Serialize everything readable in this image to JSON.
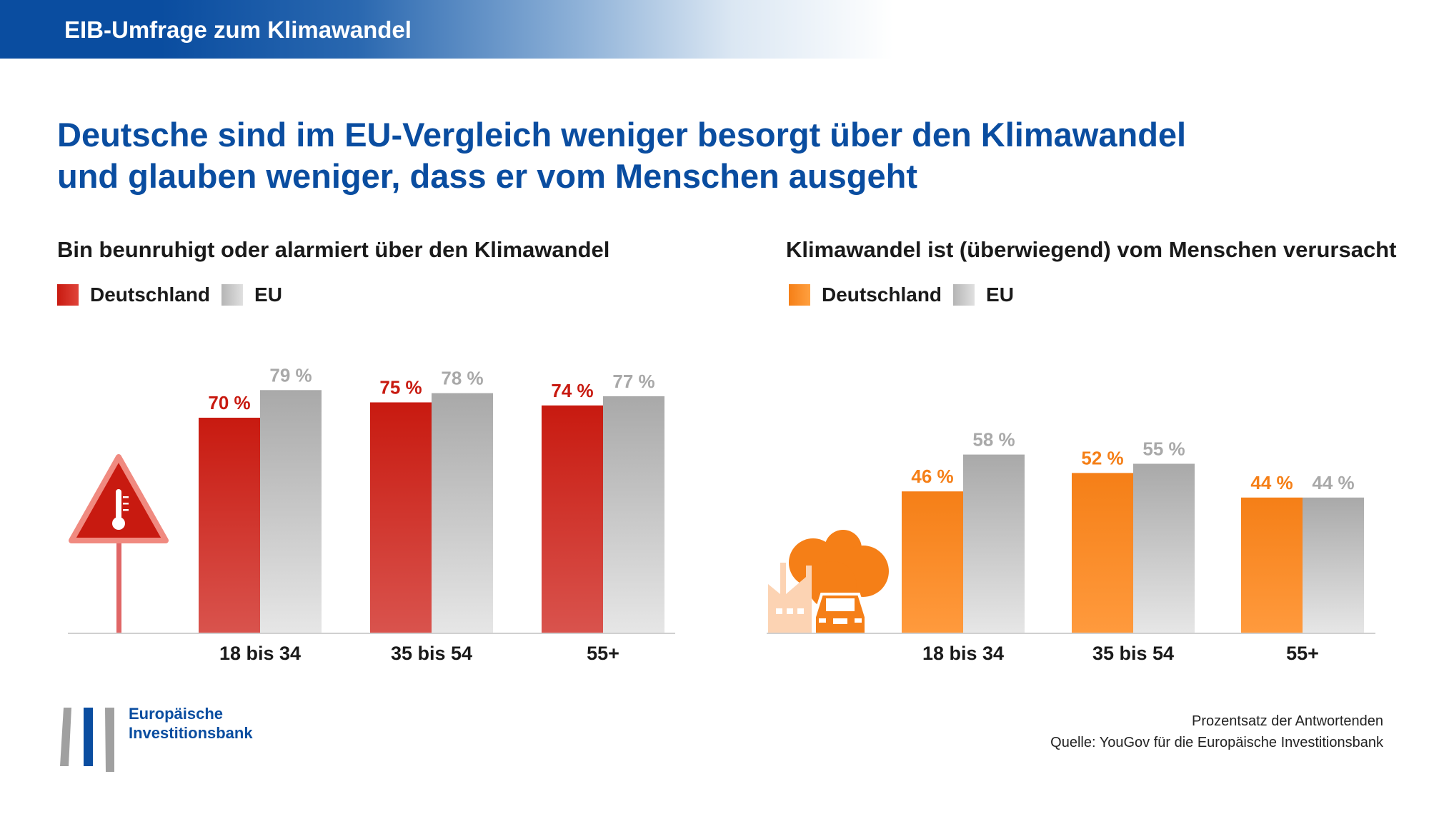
{
  "banner": {
    "title": "EIB-Umfrage zum Klimawandel"
  },
  "headline": {
    "line1": "Deutsche sind im EU-Vergleich weniger besorgt über den Klimawandel",
    "line2": "und glauben weniger, dass er vom Menschen ausgeht"
  },
  "colors": {
    "brand_blue": "#0a4da0",
    "de_left": "#c81a10",
    "de_right": "#f57f17",
    "eu": "#bdbdbd",
    "eu_label": "#a9a9a9"
  },
  "chart_data": [
    {
      "type": "bar",
      "title": "Bin beunruhigt oder alarmiert über den Klimawandel",
      "categories": [
        "18 bis 34",
        "35 bis 54",
        "55+"
      ],
      "series": [
        {
          "name": "Deutschland",
          "values": [
            70,
            75,
            74
          ],
          "labels": [
            "70 %",
            "75 %",
            "74 %"
          ]
        },
        {
          "name": "EU",
          "values": [
            79,
            78,
            77
          ],
          "labels": [
            "79 %",
            "78 %",
            "77 %"
          ]
        }
      ],
      "ylim": [
        0,
        100
      ],
      "legend": "top-left",
      "icon": "thermometer-warning-sign-icon"
    },
    {
      "type": "bar",
      "title": "Klimawandel ist (überwiegend) vom Menschen verursacht",
      "categories": [
        "18 bis 34",
        "35 bis 54",
        "55+"
      ],
      "series": [
        {
          "name": "Deutschland",
          "values": [
            46,
            52,
            44
          ],
          "labels": [
            "46 %",
            "52 %",
            "44 %"
          ]
        },
        {
          "name": "EU",
          "values": [
            58,
            55,
            44
          ],
          "labels": [
            "58 %",
            "55 %",
            "44 %"
          ]
        }
      ],
      "ylim": [
        0,
        100
      ],
      "legend": "top-left",
      "icon": "factory-car-pollution-icon"
    }
  ],
  "footer": {
    "note": "Prozentsatz der Antwortenden",
    "source": "Quelle: YouGov für die Europäische Investitionsbank",
    "logo_line1": "Europäische",
    "logo_line2": "Investitionsbank"
  }
}
